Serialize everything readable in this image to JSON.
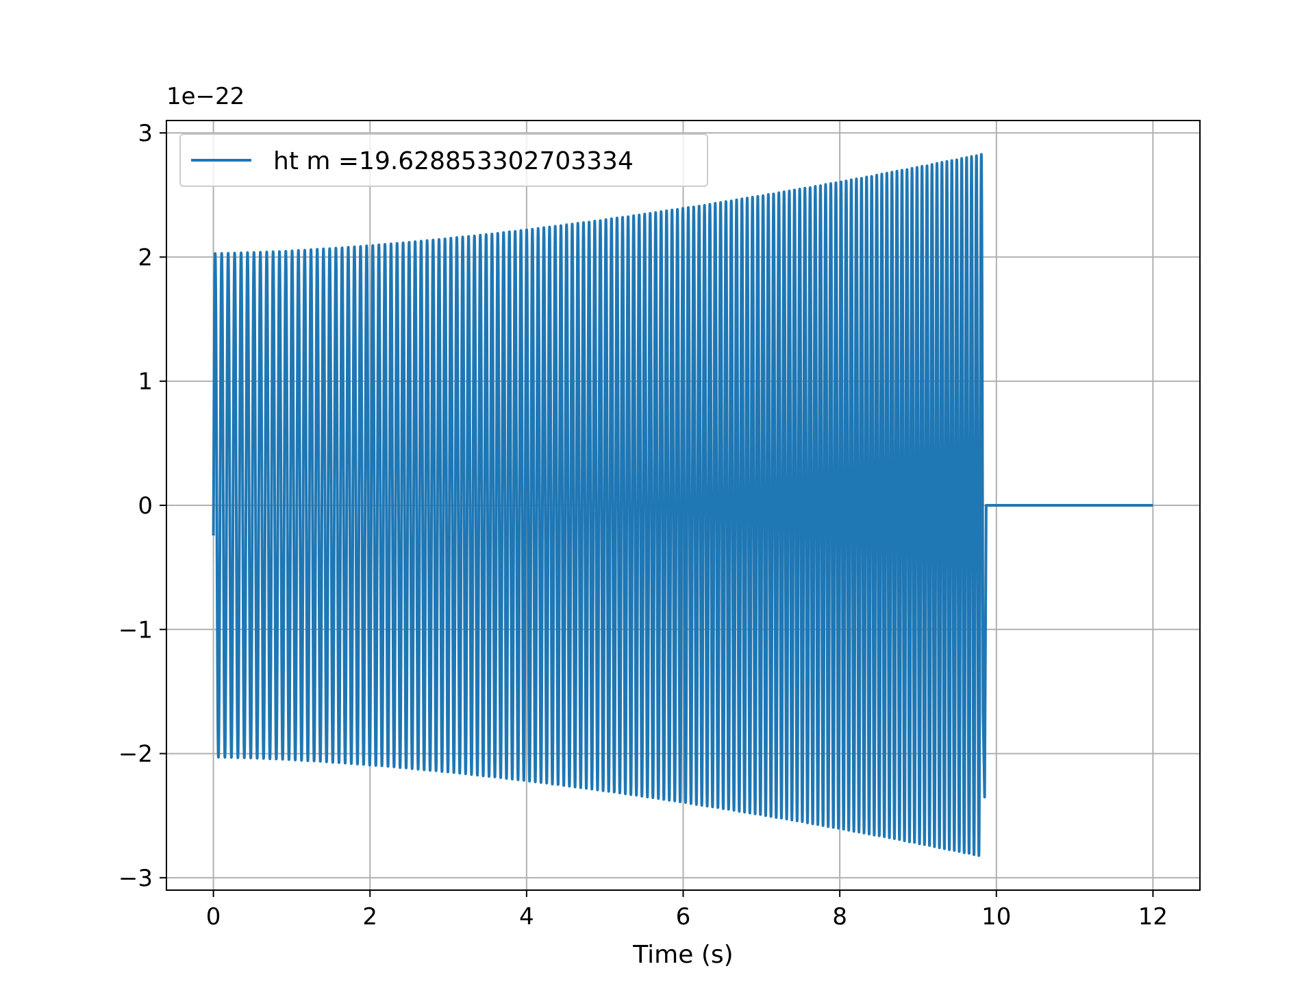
{
  "chart_data": {
    "type": "line",
    "title": "",
    "xlabel": "Time (s)",
    "ylabel": "",
    "y_offset_text": "1e−22",
    "y_scale_exponent": -22,
    "xlim": [
      -0.6,
      12.6
    ],
    "ylim": [
      -3.1,
      3.1
    ],
    "xticks": [
      0,
      2,
      4,
      6,
      8,
      10,
      12
    ],
    "xtick_labels": [
      "0",
      "2",
      "4",
      "6",
      "8",
      "10",
      "12"
    ],
    "yticks": [
      -3,
      -2,
      -1,
      0,
      1,
      2,
      3
    ],
    "ytick_labels": [
      "−3",
      "−2",
      "−1",
      "0",
      "1",
      "2",
      "3"
    ],
    "grid": true,
    "legend_position": "top-left",
    "series": [
      {
        "name": "ht m =19.628853302703334",
        "color": "#1f77b4",
        "description": "chirp oscillation with growing amplitude, ends at merger then zero",
        "x_start": 0.0,
        "x_merger": 9.83,
        "x_end": 12.0,
        "amplitude_at_start": 2.03,
        "amplitude_at_merger": 2.83,
        "cycles_per_second_at_start": 12,
        "cycles_per_second_near_merger": 16,
        "value_after_merger": 0.0
      }
    ]
  }
}
